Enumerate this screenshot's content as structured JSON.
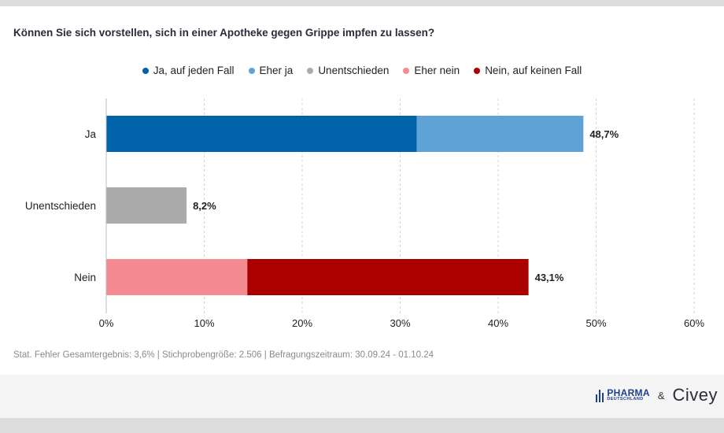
{
  "title": "Können Sie sich vorstellen, sich in einer Apotheke gegen Grippe impfen zu lassen?",
  "legend": [
    {
      "label": "Ja, auf jeden Fall",
      "color": "#0062a8"
    },
    {
      "label": "Eher ja",
      "color": "#5fa3d6"
    },
    {
      "label": "Unentschieden",
      "color": "#ababab"
    },
    {
      "label": "Eher nein",
      "color": "#f48a92"
    },
    {
      "label": "Nein, auf keinen Fall",
      "color": "#aa0000"
    }
  ],
  "chart_data": {
    "type": "bar",
    "orientation": "horizontal",
    "stacked": true,
    "categories": [
      "Ja",
      "Unentschieden",
      "Nein"
    ],
    "series": [
      {
        "name": "Ja, auf jeden Fall",
        "color": "#0062a8",
        "values": [
          31.7,
          0,
          0
        ]
      },
      {
        "name": "Eher ja",
        "color": "#5fa3d6",
        "values": [
          17.0,
          0,
          0
        ]
      },
      {
        "name": "Unentschieden",
        "color": "#ababab",
        "values": [
          0,
          8.2,
          0
        ]
      },
      {
        "name": "Eher nein",
        "color": "#f48a92",
        "values": [
          0,
          0,
          14.4
        ]
      },
      {
        "name": "Nein, auf keinen Fall",
        "color": "#aa0000",
        "values": [
          0,
          0,
          28.7
        ]
      }
    ],
    "totals": [
      "48,7%",
      "8,2%",
      "43,1%"
    ],
    "total_values": [
      48.7,
      8.2,
      43.1
    ],
    "xlim": [
      0,
      60
    ],
    "xticks": [
      0,
      10,
      20,
      30,
      40,
      50,
      60
    ],
    "xtick_labels": [
      "0%",
      "10%",
      "20%",
      "30%",
      "40%",
      "50%",
      "60%"
    ],
    "grid": "vertical-dashed",
    "legend_position": "top-center"
  },
  "footnote": "Stat. Fehler Gesamtergebnis: 3,6% | Stichprobengröße: 2.506 | Befragungszeitraum: 30.09.24 - 01.10.24",
  "branding": {
    "pharma_line1": "PHARMA",
    "pharma_line2": "DEUTSCHLAND",
    "ampersand": "&",
    "civey": "Civey"
  }
}
